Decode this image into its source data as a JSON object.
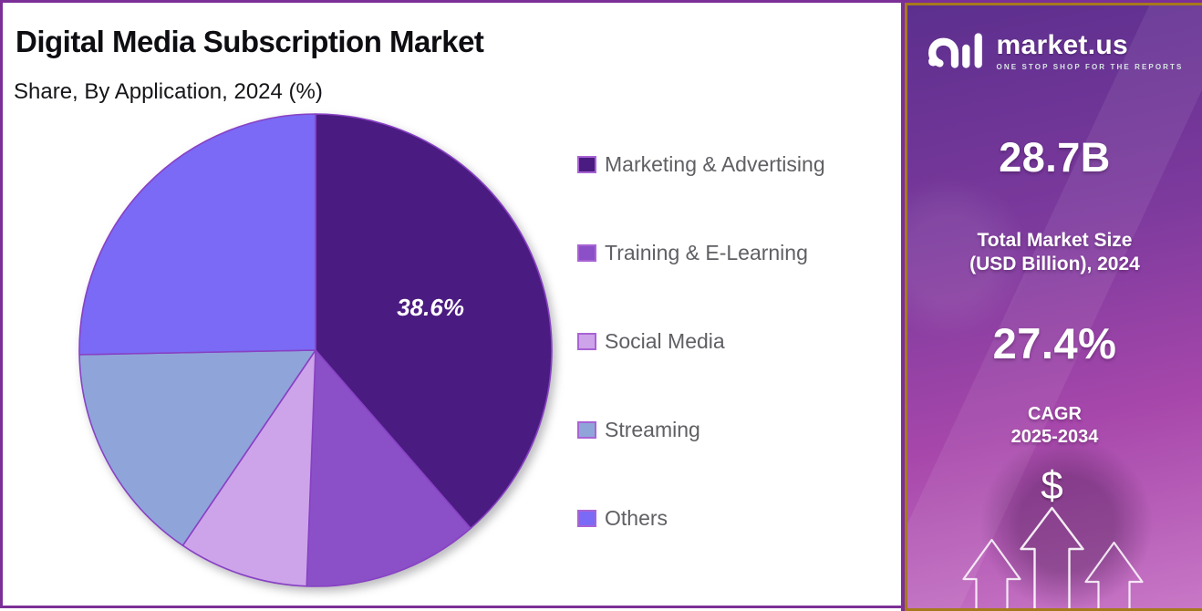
{
  "header": {
    "title": "Digital Media Subscription Market",
    "subtitle": "Share, By Application, 2024 (%)"
  },
  "chart_data": {
    "type": "pie",
    "title": "Digital Media Subscription Market",
    "subtitle": "Share, By Application, 2024 (%)",
    "unit": "%",
    "start_angle_deg": 0,
    "direction": "clockwise",
    "legend_position": "right",
    "slices": [
      {
        "name": "Marketing & Advertising",
        "value": 38.6,
        "label": "38.6%",
        "color": "#4a1b80"
      },
      {
        "name": "Training & E-Learning",
        "value": 12.0,
        "label": "",
        "color": "#8b50c7"
      },
      {
        "name": "Social Media",
        "value": 8.9,
        "label": "",
        "color": "#cda4e9"
      },
      {
        "name": "Streaming",
        "value": 15.2,
        "label": "",
        "color": "#8fa5da"
      },
      {
        "name": "Others",
        "value": 25.3,
        "label": "",
        "color": "#7a6af5"
      }
    ],
    "stroke_color": "#8841c4",
    "label_color": "#ffffff"
  },
  "sidebar": {
    "logo_text": "market.us",
    "tagline": "ONE STOP SHOP FOR THE REPORTS",
    "market_size_value": "28.7B",
    "market_size_label_line1": "Total Market Size",
    "market_size_label_line2": "(USD Billion), 2024",
    "cagr_value": "27.4%",
    "cagr_label_line1": "CAGR",
    "cagr_label_line2": "2025-2034",
    "dollar_symbol": "$",
    "colors": {
      "border_outer": "#7c2f97",
      "border_gold": "#a6791c",
      "background_top": "#5c2f8e",
      "background_bottom": "#c877c6"
    }
  }
}
